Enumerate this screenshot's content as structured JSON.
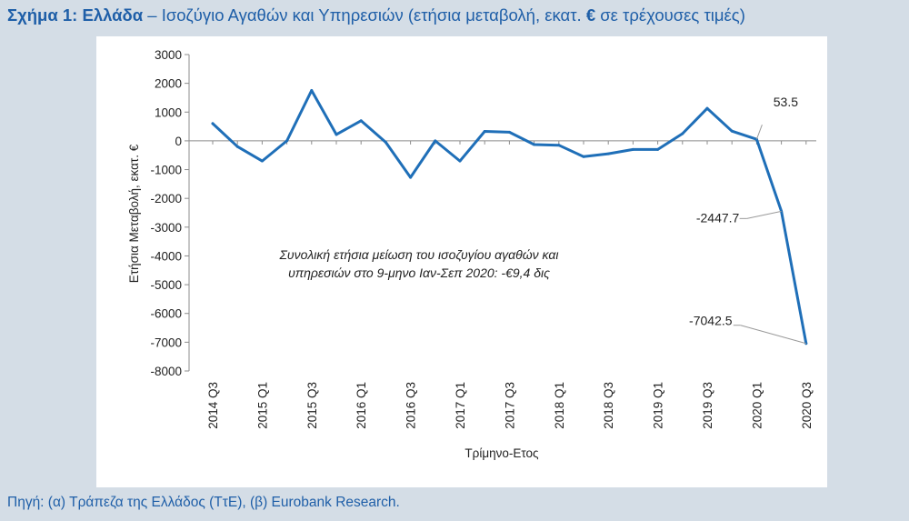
{
  "figure": {
    "title_bold": "Σχήμα 1: Ελλάδα",
    "title_rest_1": " – Ισοζύγιο Αγαθών και Υπηρεσιών (ετήσια μεταβολή, εκατ. ",
    "title_euro": "€",
    "title_rest_2": " σε τρέχουσες τιμές)",
    "source": "Πηγή: (α) Τράπεζα της Ελλάδος (ΤτΕ), (β) Eurobank Research."
  },
  "chart_data": {
    "type": "line",
    "title": "",
    "xlabel": "Τρίμηνο-Ετος",
    "ylabel": "Ετήσια Μεταβολή, εκατ. €",
    "ylim": [
      -8000,
      3000
    ],
    "yticks": [
      3000,
      2000,
      1000,
      0,
      -1000,
      -2000,
      -3000,
      -4000,
      -5000,
      -6000,
      -7000,
      -8000
    ],
    "x": [
      "2014 Q3",
      "2014 Q4",
      "2015 Q1",
      "2015 Q2",
      "2015 Q3",
      "2015 Q4",
      "2016 Q1",
      "2016 Q2",
      "2016 Q3",
      "2016 Q4",
      "2017 Q1",
      "2017 Q2",
      "2017 Q3",
      "2017 Q4",
      "2018 Q1",
      "2018 Q2",
      "2018 Q3",
      "2018 Q4",
      "2019 Q1",
      "2019 Q2",
      "2019 Q3",
      "2019 Q4",
      "2020 Q1",
      "2020 Q2",
      "2020 Q3"
    ],
    "tick_labels": [
      "2014 Q3",
      "2015 Q1",
      "2015 Q3",
      "2016 Q1",
      "2016 Q3",
      "2017 Q1",
      "2017 Q3",
      "2018 Q1",
      "2018 Q3",
      "2019 Q1",
      "2019 Q3",
      "2020 Q1",
      "2020 Q3"
    ],
    "series": [
      {
        "values": [
          600,
          -200,
          -700,
          0,
          1750,
          220,
          700,
          -50,
          -1270,
          0,
          -700,
          330,
          300,
          -130,
          -150,
          -550,
          -450,
          -300,
          -300,
          250,
          1130,
          340,
          53.5,
          -2447.7,
          -7042.5
        ],
        "color": "#1f6fb8"
      }
    ],
    "data_labels": [
      {
        "index": 22,
        "text": "53.5"
      },
      {
        "index": 23,
        "text": "-2447.7"
      },
      {
        "index": 24,
        "text": "-7042.5"
      }
    ],
    "annotation_line1": "Συνολική ετήσια μείωση του ισοζυγίου αγαθών και",
    "annotation_line2": "υπηρεσιών στο 9-μηνο Ιαν-Σεπ 2020: -€9,4 δις",
    "grid": false
  }
}
